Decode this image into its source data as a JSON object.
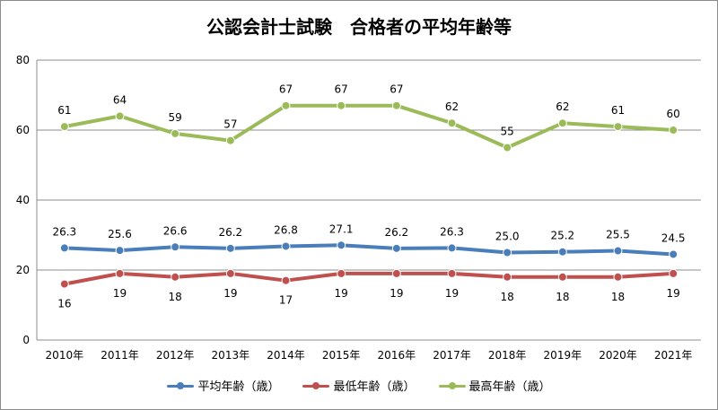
{
  "title": "公認会計士試験　合格者の平均年齢等",
  "chart_data": {
    "type": "line",
    "title": "公認会計士試験　合格者の平均年齢等",
    "categories": [
      "2010年",
      "2011年",
      "2012年",
      "2013年",
      "2014年",
      "2015年",
      "2016年",
      "2017年",
      "2018年",
      "2019年",
      "2020年",
      "2021年"
    ],
    "ylim": [
      0,
      80
    ],
    "yticks": [
      "0",
      "20",
      "40",
      "60",
      "80"
    ],
    "grid": true,
    "legend_position": "bottom",
    "series": [
      {
        "name": "平均年齢（歳）",
        "color": "#4a7ebb",
        "labels_above": true,
        "values": [
          26.3,
          25.6,
          26.6,
          26.2,
          26.8,
          27.1,
          26.2,
          26.3,
          25.0,
          25.2,
          25.5,
          24.5
        ],
        "labels": [
          "26.3",
          "25.6",
          "26.6",
          "26.2",
          "26.8",
          "27.1",
          "26.2",
          "26.3",
          "25.0",
          "25.2",
          "25.5",
          "24.5"
        ]
      },
      {
        "name": "最低年齢（歳）",
        "color": "#c0504d",
        "labels_above": false,
        "values": [
          16,
          19,
          18,
          19,
          17,
          19,
          19,
          19,
          18,
          18,
          18,
          19
        ],
        "labels": [
          "16",
          "19",
          "18",
          "19",
          "17",
          "19",
          "19",
          "19",
          "18",
          "18",
          "18",
          "19"
        ]
      },
      {
        "name": "最高年齢（歳）",
        "color": "#9bbb59",
        "labels_above": true,
        "values": [
          61,
          64,
          59,
          57,
          67,
          67,
          67,
          62,
          55,
          62,
          61,
          60
        ],
        "labels": [
          "61",
          "64",
          "59",
          "57",
          "67",
          "67",
          "67",
          "62",
          "55",
          "62",
          "61",
          "60"
        ]
      }
    ]
  }
}
